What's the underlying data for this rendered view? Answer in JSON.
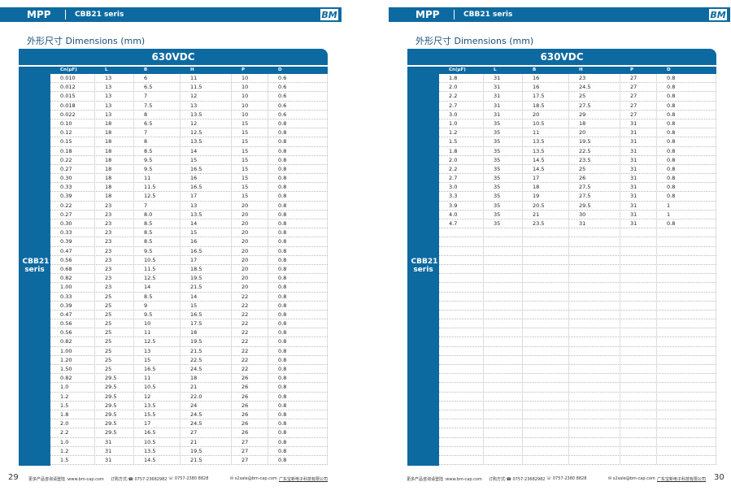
{
  "pages": [
    {
      "header": {
        "series": "MPP",
        "model": "CBB21 seris",
        "logo": "BM"
      },
      "section_title": "外形尺寸 Dimensions (mm)",
      "table": {
        "title": "630VDC",
        "side_label": "CBB21 seris",
        "columns": [
          "Cn(μF)",
          "L",
          "B",
          "H",
          "P",
          "D"
        ],
        "rows": [
          [
            "0.010",
            "13",
            "6",
            "11",
            "10",
            "0.6"
          ],
          [
            "0.012",
            "13",
            "6.5",
            "11.5",
            "10",
            "0.6"
          ],
          [
            "0.015",
            "13",
            "7",
            "12",
            "10",
            "0.6"
          ],
          [
            "0.018",
            "13",
            "7.5",
            "13",
            "10",
            "0.6"
          ],
          [
            "0.022",
            "13",
            "8",
            "13.5",
            "10",
            "0.6"
          ],
          [
            "0.10",
            "18",
            "6.5",
            "12",
            "15",
            "0.8"
          ],
          [
            "0.12",
            "18",
            "7",
            "12.5",
            "15",
            "0.8"
          ],
          [
            "0.15",
            "18",
            "8",
            "13.5",
            "15",
            "0.8"
          ],
          [
            "0.18",
            "18",
            "8.5",
            "14",
            "15",
            "0.8"
          ],
          [
            "0.22",
            "18",
            "9.5",
            "15",
            "15",
            "0.8"
          ],
          [
            "0.27",
            "18",
            "9.5",
            "16.5",
            "15",
            "0.8"
          ],
          [
            "0.30",
            "18",
            "11",
            "16",
            "15",
            "0.8"
          ],
          [
            "0.33",
            "18",
            "11.5",
            "16.5",
            "15",
            "0.8"
          ],
          [
            "0.39",
            "18",
            "12.5",
            "17",
            "15",
            "0.8"
          ],
          [
            "0.22",
            "23",
            "7",
            "13",
            "20",
            "0.8"
          ],
          [
            "0.27",
            "23",
            "8.0",
            "13.5",
            "20",
            "0.8"
          ],
          [
            "0.30",
            "23",
            "8.5",
            "14",
            "20",
            "0.8"
          ],
          [
            "0.33",
            "23",
            "8.5",
            "15",
            "20",
            "0.8"
          ],
          [
            "0.39",
            "23",
            "8.5",
            "16",
            "20",
            "0.8"
          ],
          [
            "0.47",
            "23",
            "9.5",
            "16.5",
            "20",
            "0.8"
          ],
          [
            "0.56",
            "23",
            "10.5",
            "17",
            "20",
            "0.8"
          ],
          [
            "0.68",
            "23",
            "11.5",
            "18.5",
            "20",
            "0.8"
          ],
          [
            "0.82",
            "23",
            "12.5",
            "19.5",
            "20",
            "0.8"
          ],
          [
            "1.00",
            "23",
            "14",
            "21.5",
            "20",
            "0.8"
          ],
          [
            "0.33",
            "25",
            "8.5",
            "14",
            "22",
            "0.8"
          ],
          [
            "0.39",
            "25",
            "9",
            "15",
            "22",
            "0.8"
          ],
          [
            "0.47",
            "25",
            "9.5",
            "16.5",
            "22",
            "0.8"
          ],
          [
            "0.56",
            "25",
            "10",
            "17.5",
            "22",
            "0.8"
          ],
          [
            "0.56",
            "25",
            "11",
            "18",
            "22",
            "0.8"
          ],
          [
            "0.82",
            "25",
            "12.5",
            "19.5",
            "22",
            "0.8"
          ],
          [
            "1.00",
            "25",
            "13",
            "21.5",
            "22",
            "0.8"
          ],
          [
            "1.20",
            "25",
            "15",
            "22.5",
            "22",
            "0.8"
          ],
          [
            "1.50",
            "25",
            "16.5",
            "24.5",
            "22",
            "0.8"
          ],
          [
            "0.82",
            "29.5",
            "11",
            "18",
            "26",
            "0.8"
          ],
          [
            "1.0",
            "29.5",
            "10.5",
            "21",
            "26",
            "0.8"
          ],
          [
            "1.2",
            "29.5",
            "12",
            "22.0",
            "26",
            "0.8"
          ],
          [
            "1.5",
            "29.5",
            "13.5",
            "24",
            "26",
            "0.8"
          ],
          [
            "1.8",
            "29.5",
            "15.5",
            "24.5",
            "26",
            "0.8"
          ],
          [
            "2.0",
            "29.5",
            "17",
            "24.5",
            "26",
            "0.8"
          ],
          [
            "2.2",
            "29.5",
            "16.5",
            "27",
            "26",
            "0.8"
          ],
          [
            "1.0",
            "31",
            "10.5",
            "21",
            "27",
            "0.8"
          ],
          [
            "1.2",
            "31",
            "13.5",
            "19.5",
            "27",
            "0.8"
          ],
          [
            "1.5",
            "31",
            "14.5",
            "21.5",
            "27",
            "0.8"
          ]
        ]
      },
      "footer": {
        "page_number": "29",
        "website": "更多产品咨询请登陆 :www.bm-cap.com",
        "phone": "订购方式:☎ 0757-23682982",
        "fax": "☏ 0757-2380 8828",
        "email": "✉ s2sale@bm-cap.com",
        "company": "广东宝新电子科技有限公司"
      }
    },
    {
      "header": {
        "series": "MPP",
        "model": "CBB21 seris",
        "logo": "BM"
      },
      "section_title": "外形尺寸 Dimensions (mm)",
      "table": {
        "title": "630VDC",
        "side_label": "CBB21 seris",
        "columns": [
          "Cn(μF)",
          "L",
          "B",
          "H",
          "P",
          "D"
        ],
        "rows": [
          [
            "1.8",
            "31",
            "16",
            "23",
            "27",
            "0.8"
          ],
          [
            "2.0",
            "31",
            "16",
            "24.5",
            "27",
            "0.8"
          ],
          [
            "2.2",
            "31",
            "17.5",
            "25",
            "27",
            "0.8"
          ],
          [
            "2.7",
            "31",
            "18.5",
            "27.5",
            "27",
            "0.8"
          ],
          [
            "3.0",
            "31",
            "20",
            "29",
            "27",
            "0.8"
          ],
          [
            "1.0",
            "35",
            "10.5",
            "18",
            "31",
            "0.8"
          ],
          [
            "1.2",
            "35",
            "11",
            "20",
            "31",
            "0.8"
          ],
          [
            "1.5",
            "35",
            "13.5",
            "19.5",
            "31",
            "0.8"
          ],
          [
            "1.8",
            "35",
            "13.5",
            "22.5",
            "31",
            "0.8"
          ],
          [
            "2.0",
            "35",
            "14.5",
            "23.5",
            "31",
            "0.8"
          ],
          [
            "2.2",
            "35",
            "14.5",
            "25",
            "31",
            "0.8"
          ],
          [
            "2.7",
            "35",
            "17",
            "26",
            "31",
            "0.8"
          ],
          [
            "3.0",
            "35",
            "18",
            "27.5",
            "31",
            "0.8"
          ],
          [
            "3.3",
            "35",
            "19",
            "27.5",
            "31",
            "0.8"
          ],
          [
            "3.9",
            "35",
            "20.5",
            "29.5",
            "31",
            "1"
          ],
          [
            "4.0",
            "35",
            "21",
            "30",
            "31",
            "1"
          ],
          [
            "4.7",
            "35",
            "23.5",
            "31",
            "31",
            "0.8"
          ]
        ]
      },
      "footer": {
        "page_number": "30",
        "website": "更多产品咨询请登陆 :www.bm-cap.com",
        "phone": "订购方式:☎ 0757-23682982",
        "fax": "☏ 0757-2380 8828",
        "email": "✉ s2sale@bm-cap.com",
        "company": "广东宝新电子科技有限公司"
      }
    }
  ]
}
